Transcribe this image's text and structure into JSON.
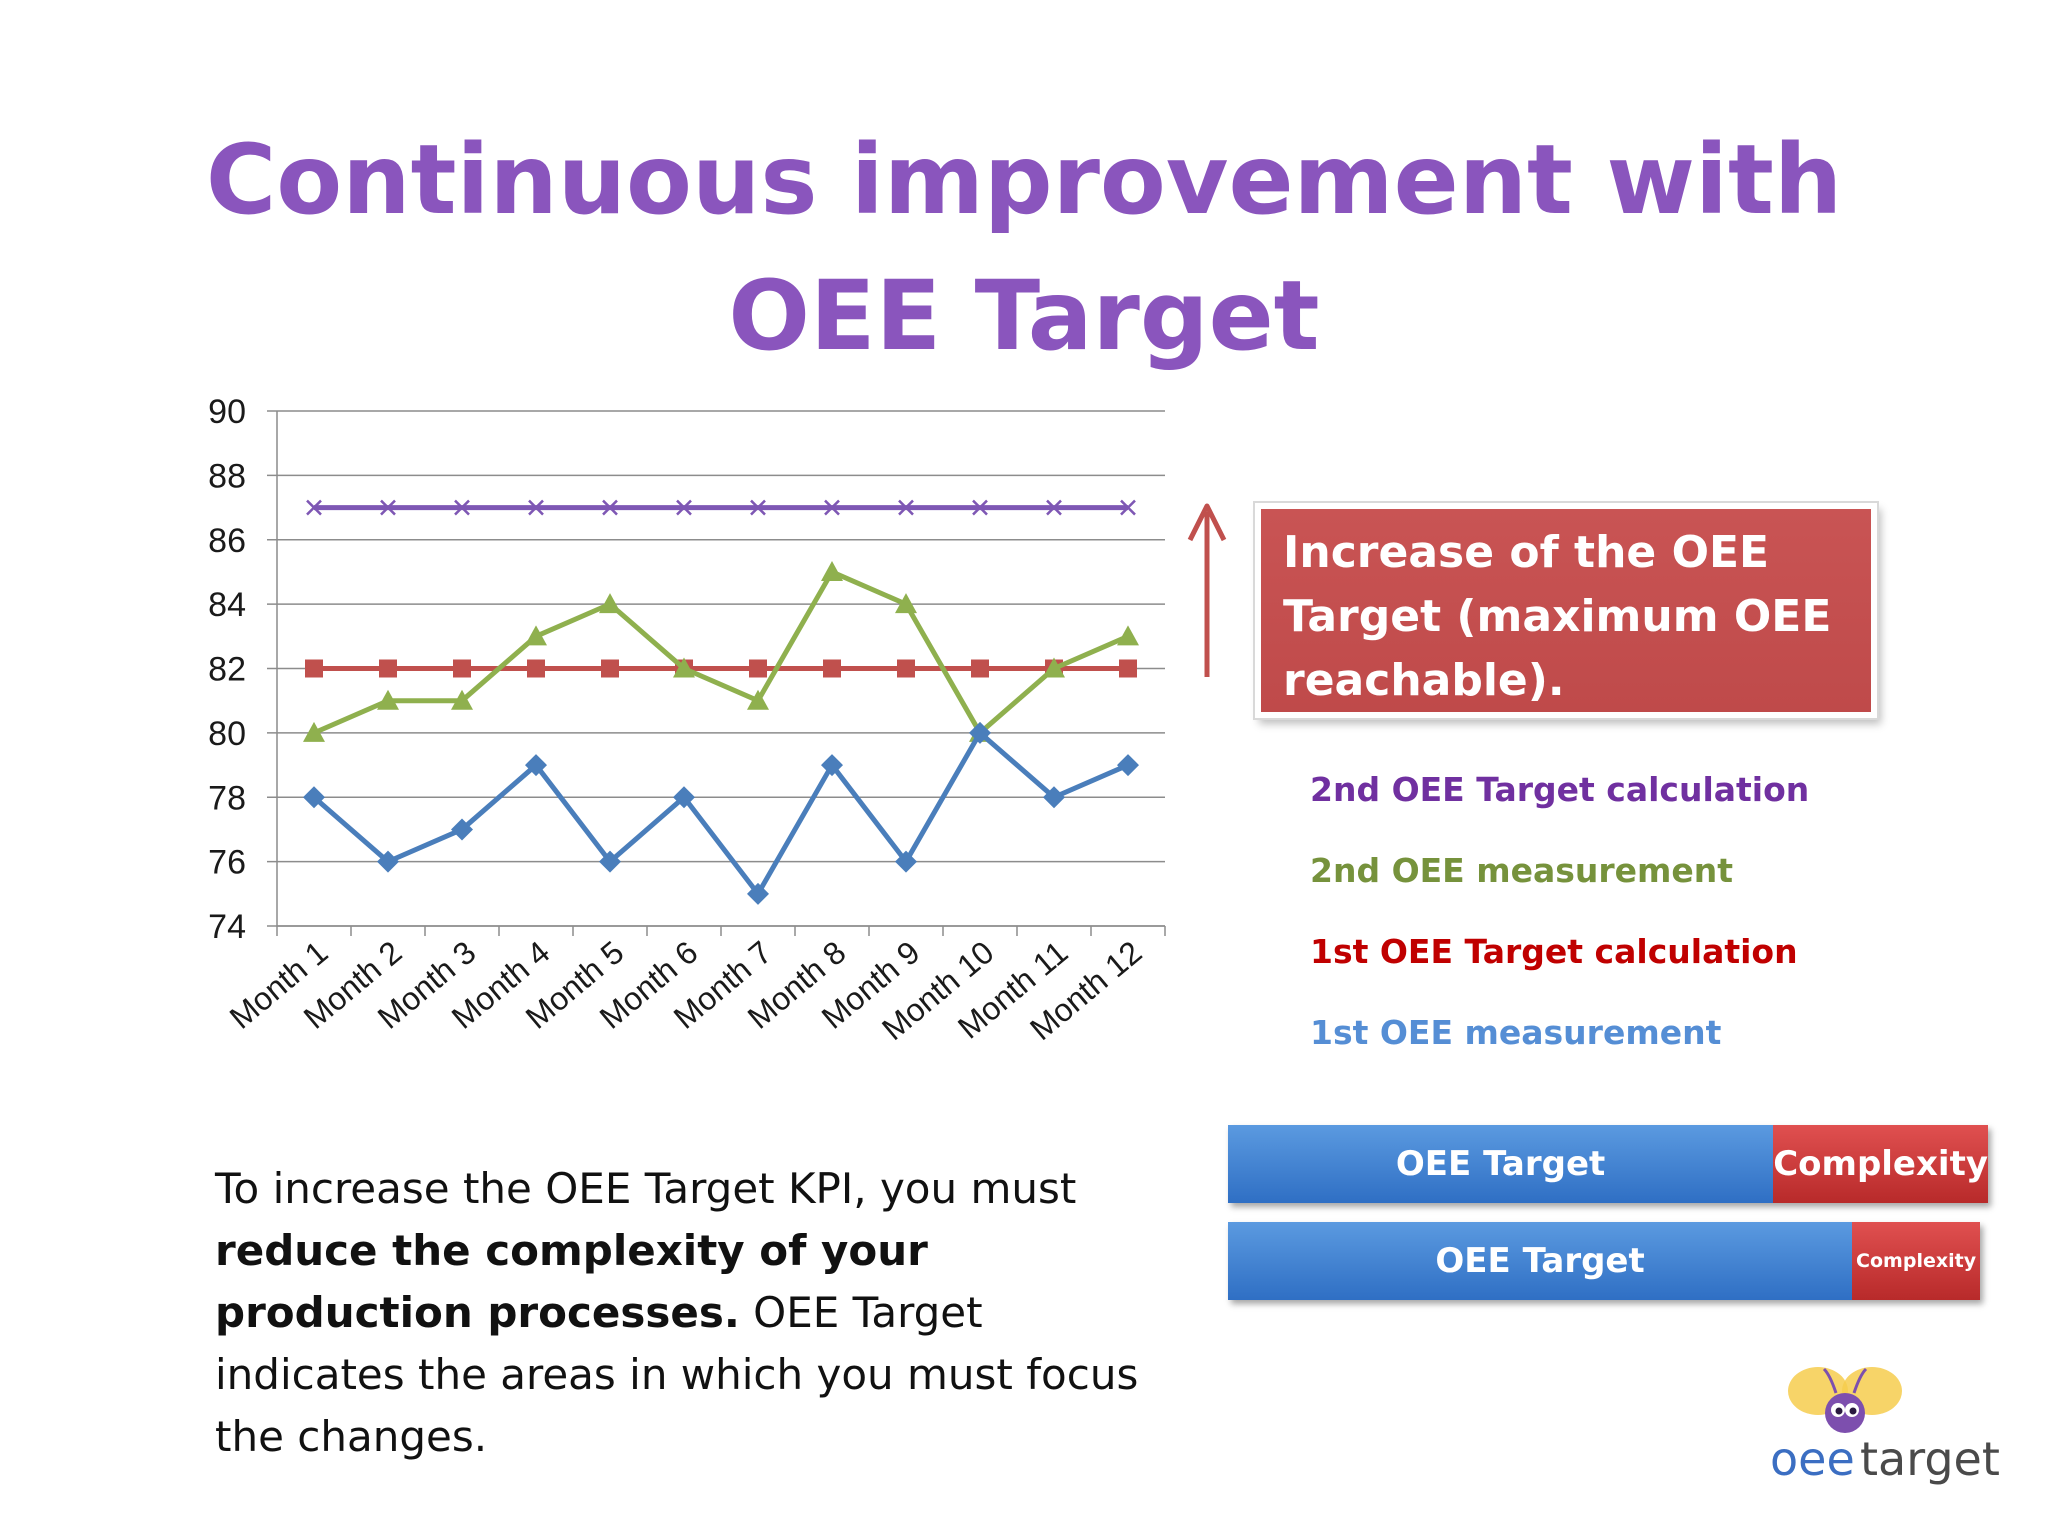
{
  "slide": {
    "title_line1": "Continuous improvement with",
    "title_line2": "OEE Target",
    "callout": {
      "line1": "Increase of the OEE",
      "line2": "Target (maximum OEE",
      "line3": "reachable)."
    },
    "body": {
      "part1": "To increase the OEE Target KPI, you must ",
      "bold": "reduce the complexity of your production processes.",
      "part2": "  OEE Target indicates the areas in which you must focus the changes."
    },
    "bars": [
      {
        "left_label": "OEE Target",
        "right_label": "Complexity",
        "complexity_fraction": 0.26
      },
      {
        "left_label": "OEE Target",
        "right_label": "Complexity",
        "complexity_fraction": 0.17
      }
    ],
    "logo": {
      "text_left": "oee",
      "text_right": "target"
    }
  },
  "chart_data": {
    "type": "line",
    "categories": [
      "Month 1",
      "Month 2",
      "Month 3",
      "Month 4",
      "Month 5",
      "Month 6",
      "Month 7",
      "Month 8",
      "Month 9",
      "Month 10",
      "Month 11",
      "Month 12"
    ],
    "ylim": [
      74,
      90
    ],
    "yticks": [
      74,
      76,
      78,
      80,
      82,
      84,
      86,
      88,
      90
    ],
    "grid": true,
    "title": "",
    "xlabel": "",
    "ylabel": "",
    "legend_position": "right",
    "series": [
      {
        "name": "2nd OEE Target calculation",
        "color": "#7e57b4",
        "marker": "x",
        "values": [
          87,
          87,
          87,
          87,
          87,
          87,
          87,
          87,
          87,
          87,
          87,
          87
        ]
      },
      {
        "name": "2nd OEE measurement",
        "color": "#8fb04e",
        "marker": "triangle",
        "values": [
          80,
          81,
          81,
          83,
          84,
          82,
          81,
          85,
          84,
          80,
          82,
          83
        ]
      },
      {
        "name": "1st OEE Target calculation",
        "color": "#c0504d",
        "marker": "square",
        "values": [
          82,
          82,
          82,
          82,
          82,
          82,
          82,
          82,
          82,
          82,
          82,
          82
        ]
      },
      {
        "name": "1st OEE measurement",
        "color": "#4a7ebb",
        "marker": "diamond",
        "values": [
          78,
          76,
          77,
          79,
          76,
          78,
          75,
          79,
          76,
          80,
          78,
          79
        ]
      }
    ],
    "legend_colors": [
      "#7030a0",
      "#76923c",
      "#c00000",
      "#558ed5"
    ],
    "arrow_color": "#c0504d"
  }
}
